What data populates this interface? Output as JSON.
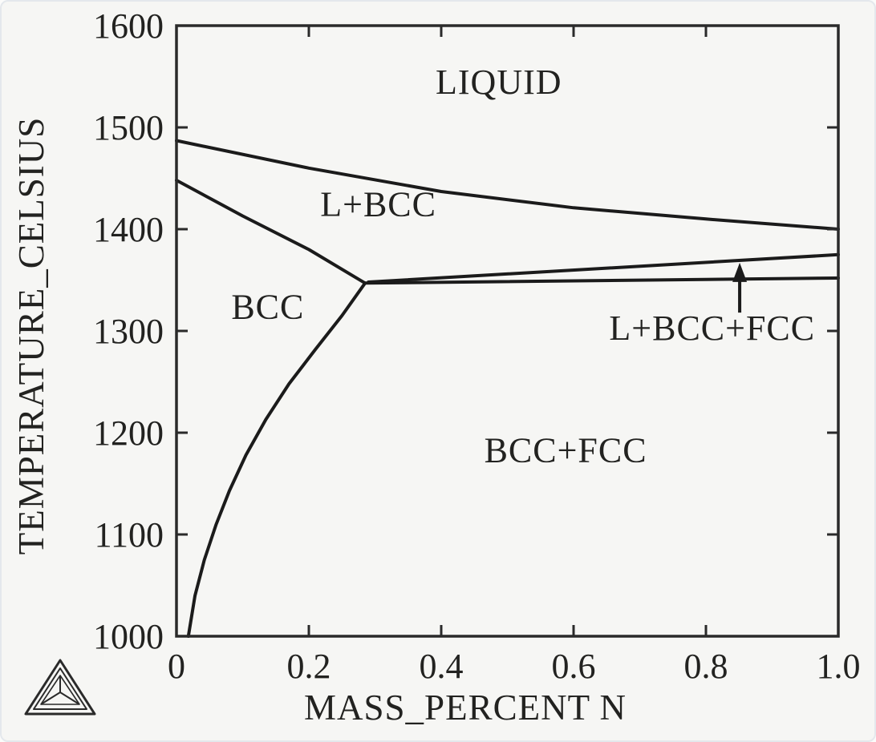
{
  "window": {
    "background_color": "#f6f6f4",
    "border_color": "#e4e8ec",
    "line_color": "#1b1b1b",
    "text_color": "#222220"
  },
  "branding": {
    "logo_name": "thermo-calc-tetrahedron-logo"
  },
  "chart_data": {
    "type": "line",
    "subtype": "phase-diagram",
    "title": "",
    "xlabel": "MASS_PERCENT N",
    "ylabel": "TEMPERATURE_CELSIUS",
    "xlim": [
      0,
      1.0
    ],
    "ylim": [
      1000,
      1600
    ],
    "grid": false,
    "legend": null,
    "x_ticks": {
      "values": [
        0,
        0.2,
        0.4,
        0.6,
        0.8,
        1.0
      ],
      "labels": [
        "0",
        "0.2",
        "0.4",
        "0.6",
        "0.8",
        "1.0"
      ],
      "minor_tick_values": [
        0.2,
        0.4,
        0.6,
        0.8
      ]
    },
    "y_ticks": {
      "values": [
        1600,
        1500,
        1400,
        1300,
        1200,
        1100,
        1000
      ],
      "labels": [
        "1600",
        "1500",
        "1400",
        "1300",
        "1200",
        "1100",
        "1000"
      ],
      "minor_tick_values": [
        1500,
        1400,
        1300,
        1200,
        1100
      ]
    },
    "series": [
      {
        "name": "liquidus-liquid-over-l-bcc",
        "points": [
          [
            0,
            1487
          ],
          [
            0.2,
            1460
          ],
          [
            0.4,
            1437
          ],
          [
            0.6,
            1421
          ],
          [
            0.8,
            1410
          ],
          [
            1.0,
            1400
          ]
        ]
      },
      {
        "name": "bcc-solidus-to-triple-point",
        "points": [
          [
            0,
            1448
          ],
          [
            0.1,
            1413
          ],
          [
            0.2,
            1380
          ],
          [
            0.285,
            1347
          ]
        ]
      },
      {
        "name": "bcc-bccfcc-solvus-curve",
        "points": [
          [
            0.285,
            1347
          ],
          [
            0.25,
            1315
          ],
          [
            0.21,
            1282
          ],
          [
            0.17,
            1248
          ],
          [
            0.135,
            1213
          ],
          [
            0.105,
            1178
          ],
          [
            0.08,
            1143
          ],
          [
            0.06,
            1110
          ],
          [
            0.042,
            1075
          ],
          [
            0.028,
            1040
          ],
          [
            0.018,
            1000
          ]
        ]
      },
      {
        "name": "three-phase-lower-boundary",
        "points": [
          [
            0.285,
            1347
          ],
          [
            1.0,
            1352
          ]
        ]
      },
      {
        "name": "three-phase-upper-boundary",
        "points": [
          [
            0.29,
            1348
          ],
          [
            1.0,
            1375
          ]
        ]
      }
    ],
    "region_labels": [
      {
        "text": "LIQUID",
        "x": 0.487,
        "y": 1545,
        "anchor": "middle"
      },
      {
        "text": "L+BCC",
        "x": 0.305,
        "y": 1425,
        "anchor": "middle"
      },
      {
        "text": "BCC",
        "x": 0.138,
        "y": 1324,
        "anchor": "middle"
      },
      {
        "text": "BCC+FCC",
        "x": 0.588,
        "y": 1183,
        "anchor": "middle"
      },
      {
        "text": "L+BCC+FCC",
        "x": 0.965,
        "y": 1303,
        "anchor": "end"
      }
    ],
    "annotation_arrow": {
      "label_for": "L+BCC+FCC",
      "tail": [
        0.851,
        1318
      ],
      "tip": [
        0.851,
        1367
      ]
    }
  }
}
